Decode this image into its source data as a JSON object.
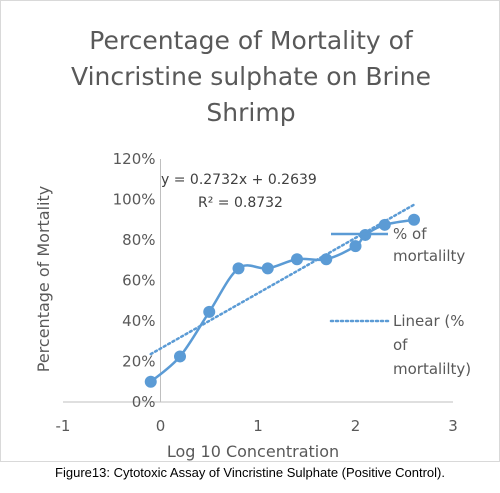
{
  "chart_data": {
    "type": "scatter",
    "title": [
      "Percentage of Mortality of",
      "Vincristine sulphate  on Brine",
      "Shrimp"
    ],
    "xlabel": "Log 10 Concentration",
    "ylabel": "Percentage of Mortality",
    "xlim": [
      -1,
      3
    ],
    "ylim": [
      0,
      120
    ],
    "x_ticks": [
      "-1",
      "0",
      "1",
      "2",
      "3"
    ],
    "y_ticks": [
      "0%",
      "20%",
      "40%",
      "60%",
      "80%",
      "100%",
      "120%"
    ],
    "series": [
      {
        "name": "% of mortalilty",
        "style": "smooth-line-with-markers",
        "color": "#5b9bd5",
        "x": [
          -0.1,
          0.2,
          0.5,
          0.8,
          1.1,
          1.4,
          1.7,
          2.0,
          2.1,
          2.3,
          2.6
        ],
        "y": [
          10,
          22.5,
          44.5,
          66,
          66,
          70.5,
          70.5,
          77,
          82.5,
          87.5,
          90
        ]
      },
      {
        "name": "Linear (% of mortalilty)",
        "style": "dotted-trendline",
        "color": "#5b9bd5",
        "slope": 0.2732,
        "intercept": 0.2639,
        "x_range": [
          -0.1,
          2.6
        ]
      }
    ],
    "trendline_equation": "y = 0.2732x + 0.2639",
    "r_squared": "R² = 0.8732",
    "legend_labels": [
      [
        "% of",
        "mortalilty"
      ],
      [
        "Linear (%",
        "of",
        "mortalilty)"
      ]
    ],
    "legend_position": "right",
    "grid": false
  },
  "caption": "Figure13: Cytotoxic Assay of Vincristine Sulphate (Positive Control)."
}
